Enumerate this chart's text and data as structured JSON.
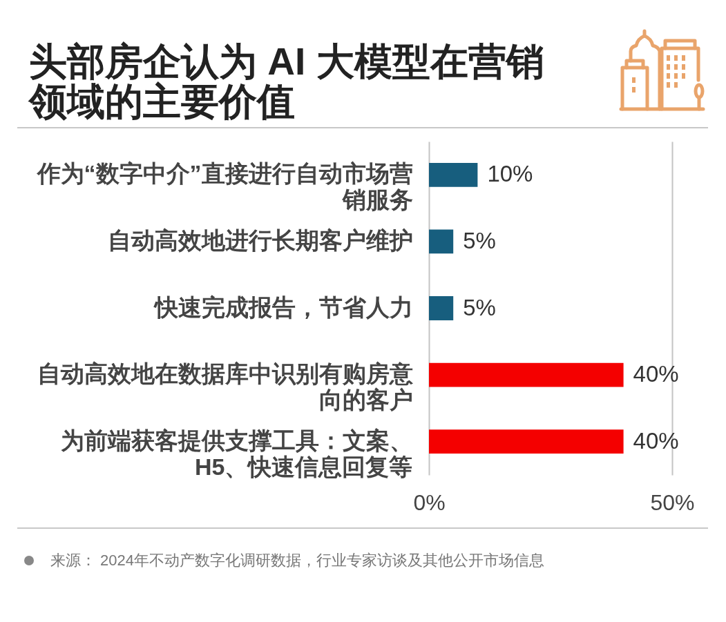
{
  "chart_data": {
    "type": "bar",
    "orientation": "horizontal",
    "title": "头部房企认为 AI 大模型在营销领域的主要价值",
    "categories": [
      "作为“数字中介”直接进行自动市场营销服务",
      "自动高效地进行长期客户维护",
      "快速完成报告，节省人力",
      "自动高效地在数据库中识别有购房意向的客户",
      "为前端获客提供支撑工具：文案、H5、快速信息回复等"
    ],
    "values": [
      10,
      5,
      5,
      40,
      40
    ],
    "colors": [
      "#175e7e",
      "#175e7e",
      "#175e7e",
      "#f40000",
      "#f40000"
    ],
    "value_labels": [
      "10%",
      "5%",
      "5%",
      "40%",
      "40%"
    ],
    "xlim": [
      0,
      50
    ],
    "xticks": [
      {
        "value": 0,
        "label": "0%"
      },
      {
        "value": 50,
        "label": "50%"
      }
    ],
    "annotations": [
      "来源： 2024年不动产数字化调研数据，行业专家访谈及其他公开市场信息"
    ]
  }
}
